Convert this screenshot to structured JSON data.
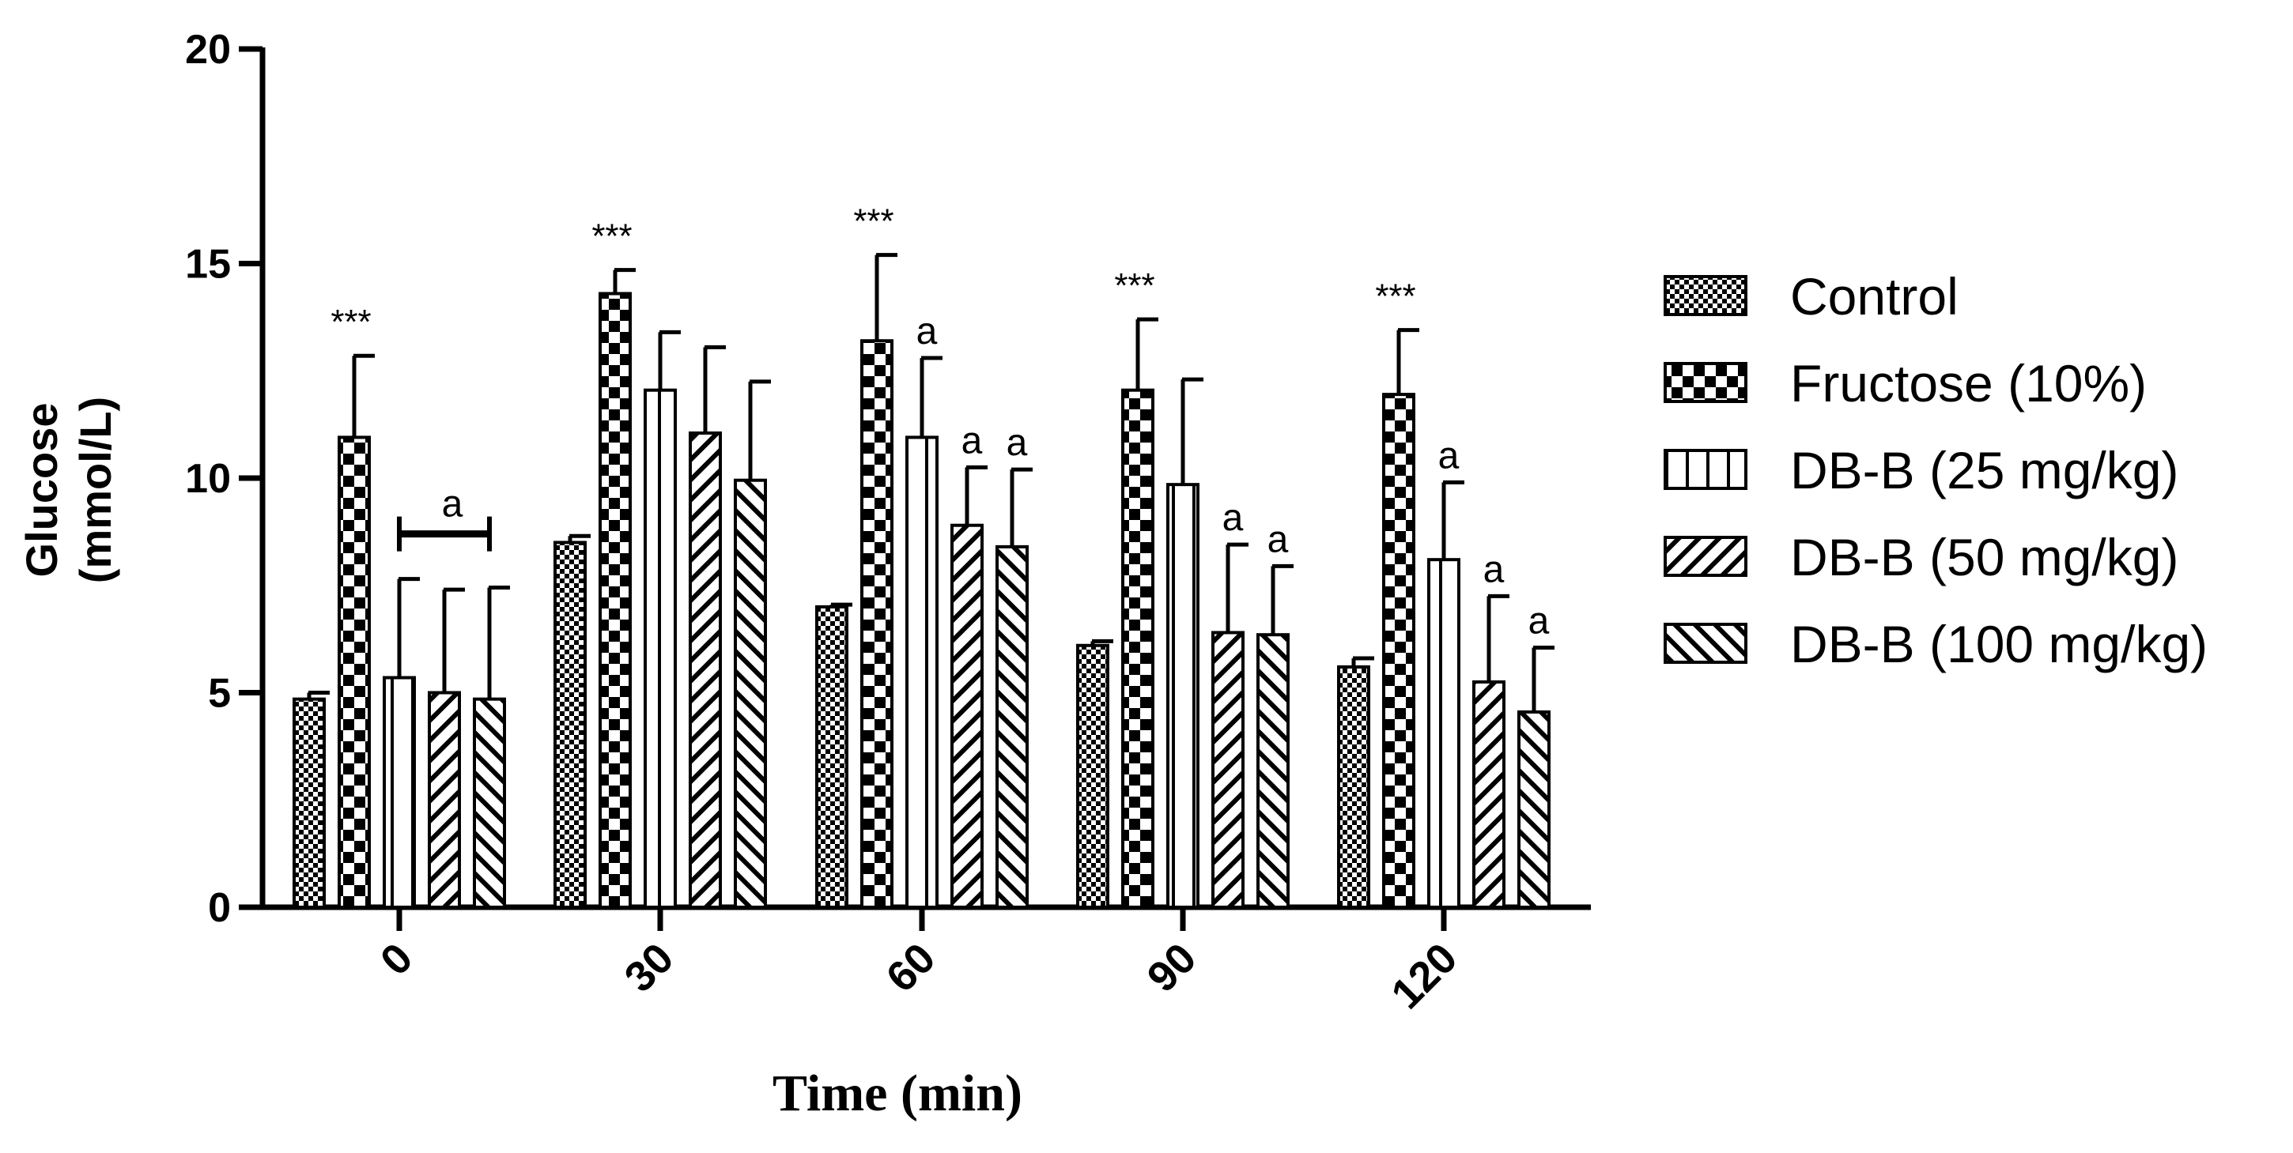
{
  "chart_data": {
    "type": "bar",
    "title": "",
    "xlabel": "Time (min)",
    "ylabel_lines": [
      "Glucose",
      "(mmol/L)"
    ],
    "ylim": [
      0,
      20
    ],
    "yticks": [
      0,
      5,
      10,
      15,
      20
    ],
    "categories": [
      "0",
      "30",
      "60",
      "90",
      "120"
    ],
    "legend_position": "right",
    "series": [
      {
        "name": "Control",
        "pattern": "checker-fine",
        "values": [
          4.85,
          8.5,
          7.0,
          6.1,
          5.6
        ],
        "errors": [
          0.15,
          0.15,
          0.05,
          0.1,
          0.2
        ]
      },
      {
        "name": "Fructose (10%)",
        "pattern": "checker-bold",
        "values": [
          10.95,
          14.3,
          13.2,
          12.05,
          11.95
        ],
        "errors": [
          1.9,
          0.55,
          2.0,
          1.65,
          1.5
        ]
      },
      {
        "name": "DB-B (25 mg/kg)",
        "pattern": "vertical",
        "values": [
          5.35,
          12.05,
          10.95,
          9.85,
          8.1
        ],
        "errors": [
          2.3,
          1.35,
          1.85,
          2.45,
          1.8
        ]
      },
      {
        "name": "DB-B (50 mg/kg)",
        "pattern": "diag-up",
        "values": [
          5.0,
          11.05,
          8.9,
          6.4,
          5.25
        ],
        "errors": [
          2.4,
          2.0,
          1.35,
          2.05,
          2.0
        ]
      },
      {
        "name": "DB-B (100 mg/kg)",
        "pattern": "diag-down",
        "values": [
          4.85,
          9.95,
          8.4,
          6.35,
          4.55
        ],
        "errors": [
          2.6,
          2.3,
          1.8,
          1.6,
          1.5
        ]
      }
    ],
    "annotations": [
      {
        "text": "***",
        "category": 0,
        "series": 1
      },
      {
        "text": "***",
        "category": 1,
        "series": 1
      },
      {
        "text": "***",
        "category": 2,
        "series": 1
      },
      {
        "text": "***",
        "category": 3,
        "series": 1
      },
      {
        "text": "***",
        "category": 4,
        "series": 1
      },
      {
        "text": "a",
        "category": 0,
        "series": "bracket 2-4"
      },
      {
        "text": "a",
        "category": 2,
        "series": 2
      },
      {
        "text": "a",
        "category": 2,
        "series": 3
      },
      {
        "text": "a",
        "category": 2,
        "series": 4
      },
      {
        "text": "a",
        "category": 3,
        "series": 3
      },
      {
        "text": "a",
        "category": 3,
        "series": 4
      },
      {
        "text": "a",
        "category": 4,
        "series": 2
      },
      {
        "text": "a",
        "category": 4,
        "series": 3
      },
      {
        "text": "a",
        "category": 4,
        "series": 4
      }
    ]
  }
}
